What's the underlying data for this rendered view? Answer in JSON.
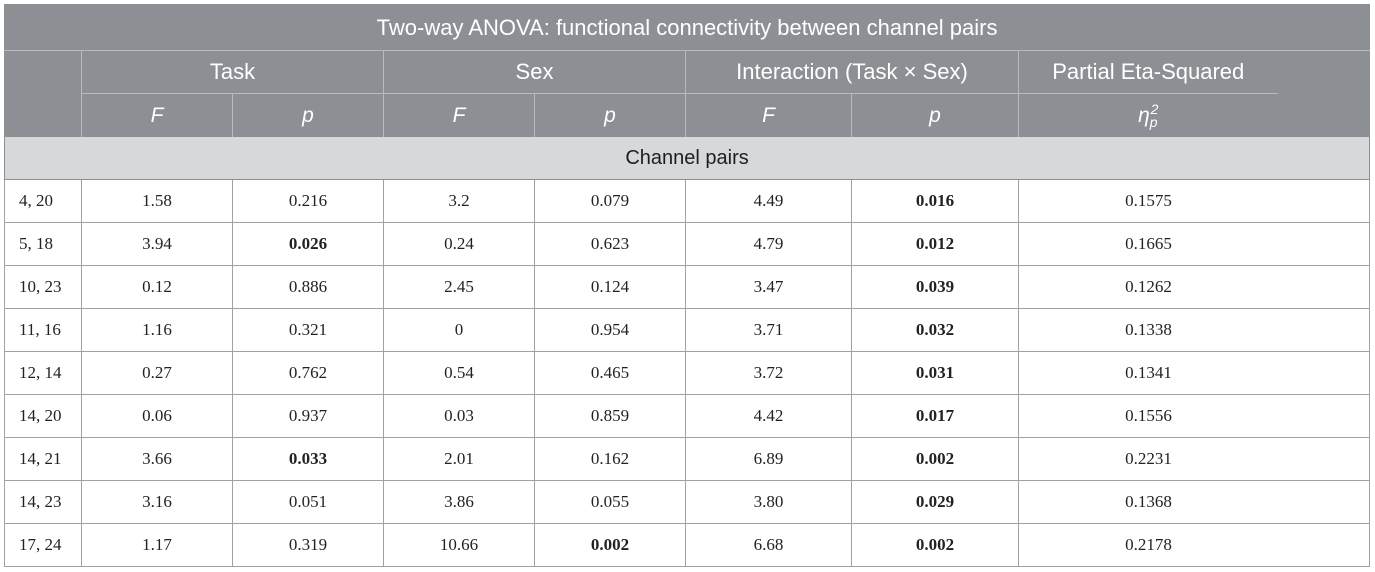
{
  "table": {
    "title": "Two-way ANOVA: functional connectivity between channel pairs",
    "groups": [
      {
        "label": "Task"
      },
      {
        "label": "Sex"
      },
      {
        "label": "Interaction (Task × Sex)"
      },
      {
        "label": "Partial Eta-Squared"
      }
    ],
    "subheaders": {
      "task_f": "F",
      "task_p": "p",
      "sex_f": "F",
      "sex_p": "p",
      "int_f": "F",
      "int_p": "p",
      "eta_base": "η",
      "eta_sub": "p",
      "eta_sup": "2"
    },
    "section_label": "Channel pairs",
    "rows": [
      {
        "pair": "4, 20",
        "task_f": "1.58",
        "task_p": "0.216",
        "task_p_bold": false,
        "sex_f": "3.2",
        "sex_p": "0.079",
        "sex_p_bold": false,
        "int_f": "4.49",
        "int_p": "0.016",
        "int_p_bold": true,
        "eta": "0.1575"
      },
      {
        "pair": "5, 18",
        "task_f": "3.94",
        "task_p": "0.026",
        "task_p_bold": true,
        "sex_f": "0.24",
        "sex_p": "0.623",
        "sex_p_bold": false,
        "int_f": "4.79",
        "int_p": "0.012",
        "int_p_bold": true,
        "eta": "0.1665"
      },
      {
        "pair": "10, 23",
        "task_f": "0.12",
        "task_p": "0.886",
        "task_p_bold": false,
        "sex_f": "2.45",
        "sex_p": "0.124",
        "sex_p_bold": false,
        "int_f": "3.47",
        "int_p": "0.039",
        "int_p_bold": true,
        "eta": "0.1262"
      },
      {
        "pair": "11, 16",
        "task_f": "1.16",
        "task_p": "0.321",
        "task_p_bold": false,
        "sex_f": "0",
        "sex_p": "0.954",
        "sex_p_bold": false,
        "int_f": "3.71",
        "int_p": "0.032",
        "int_p_bold": true,
        "eta": "0.1338"
      },
      {
        "pair": "12, 14",
        "task_f": "0.27",
        "task_p": "0.762",
        "task_p_bold": false,
        "sex_f": "0.54",
        "sex_p": "0.465",
        "sex_p_bold": false,
        "int_f": "3.72",
        "int_p": "0.031",
        "int_p_bold": true,
        "eta": "0.1341"
      },
      {
        "pair": "14, 20",
        "task_f": "0.06",
        "task_p": "0.937",
        "task_p_bold": false,
        "sex_f": "0.03",
        "sex_p": "0.859",
        "sex_p_bold": false,
        "int_f": "4.42",
        "int_p": "0.017",
        "int_p_bold": true,
        "eta": "0.1556"
      },
      {
        "pair": "14, 21",
        "task_f": "3.66",
        "task_p": "0.033",
        "task_p_bold": true,
        "sex_f": "2.01",
        "sex_p": "0.162",
        "sex_p_bold": false,
        "int_f": "6.89",
        "int_p": "0.002",
        "int_p_bold": true,
        "eta": "0.2231"
      },
      {
        "pair": "14, 23",
        "task_f": "3.16",
        "task_p": "0.051",
        "task_p_bold": false,
        "sex_f": "3.86",
        "sex_p": "0.055",
        "sex_p_bold": false,
        "int_f": "3.80",
        "int_p": "0.029",
        "int_p_bold": true,
        "eta": "0.1368"
      },
      {
        "pair": "17, 24",
        "task_f": "1.17",
        "task_p": "0.319",
        "task_p_bold": false,
        "sex_f": "10.66",
        "sex_p": "0.002",
        "sex_p_bold": true,
        "int_f": "6.68",
        "int_p": "0.002",
        "int_p_bold": true,
        "eta": "0.2178"
      }
    ]
  }
}
